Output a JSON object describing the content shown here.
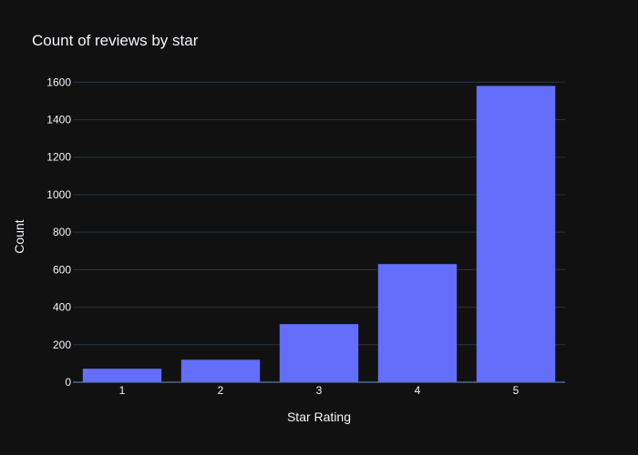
{
  "chart_data": {
    "type": "bar",
    "title": "Count of reviews by star",
    "xlabel": "Star Rating",
    "ylabel": "Count",
    "categories": [
      "1",
      "2",
      "3",
      "4",
      "5"
    ],
    "values": [
      72,
      120,
      310,
      630,
      1580
    ],
    "ylim": [
      0,
      1650
    ],
    "yticks": [
      0,
      200,
      400,
      600,
      800,
      1000,
      1200,
      1400,
      1600
    ],
    "grid": true,
    "colors": {
      "background": "#111111",
      "bar": "#636efa",
      "grid": "#283442",
      "text": "#f2f5fa"
    }
  }
}
